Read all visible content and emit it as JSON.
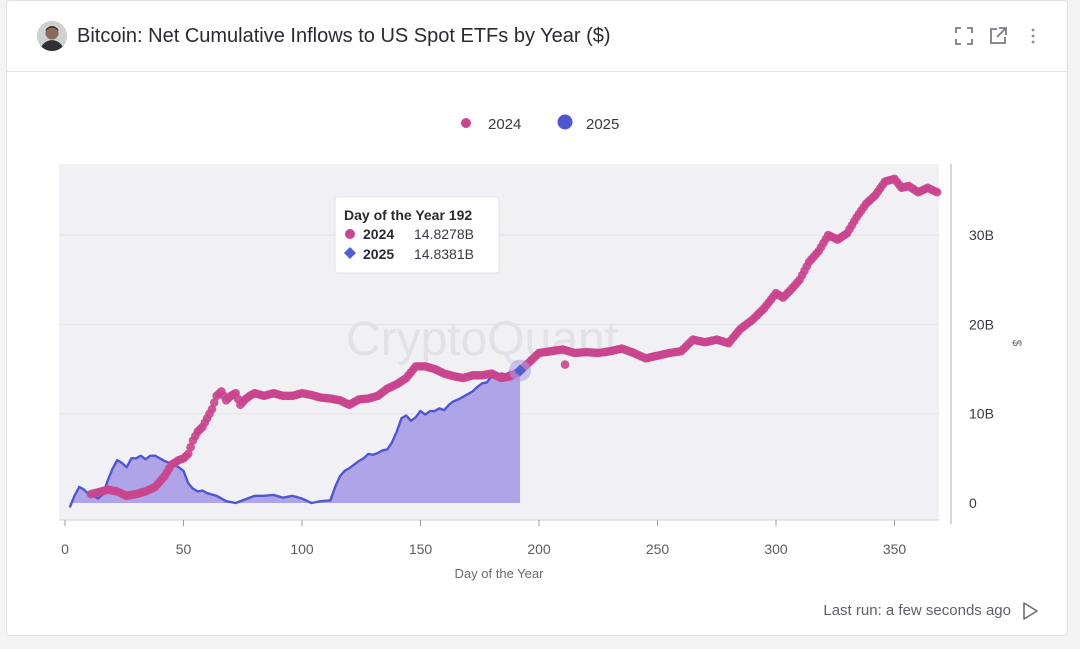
{
  "header": {
    "title": "Bitcoin: Net Cumulative Inflows to US Spot ETFs by Year ($)",
    "icons": [
      "fullscreen-icon",
      "external-link-icon",
      "more-vertical-icon"
    ]
  },
  "footer": {
    "last_run": "Last run: a few seconds ago"
  },
  "watermark": "CryptoQuant",
  "tooltip": {
    "title": "Day of the Year 192",
    "rows": [
      {
        "name": "2024",
        "value": "14.8278B",
        "color": "#c9458e",
        "marker": "circle"
      },
      {
        "name": "2025",
        "value": "14.8381B",
        "color": "#5060d0",
        "marker": "diamond"
      }
    ]
  },
  "colors": {
    "series_2024": "#c9458e",
    "series_2025_line": "#4f57cd",
    "series_2025_fill": "#a99be8",
    "plot_bg": "#f1f0f4"
  },
  "chart_data": {
    "type": "line",
    "xlabel": "Day of the Year",
    "ylabel": "$",
    "xlim": [
      0,
      370
    ],
    "ylim": [
      -2,
      38
    ],
    "x_ticks": [
      0,
      50,
      100,
      150,
      200,
      250,
      300,
      350
    ],
    "y_ticks": [
      0,
      10,
      20,
      30
    ],
    "y_tick_labels": [
      "0",
      "10B",
      "20B",
      "30B"
    ],
    "legend": [
      "2024",
      "2025"
    ],
    "legend_position": "top-center",
    "grid": true,
    "series": [
      {
        "name": "2024",
        "style": "scatter",
        "x": [
          11,
          14,
          18,
          22,
          26,
          30,
          34,
          38,
          42,
          45,
          48,
          50,
          52,
          54,
          56,
          58,
          60,
          62,
          64,
          66,
          68,
          70,
          72,
          74,
          76,
          78,
          80,
          84,
          88,
          92,
          96,
          100,
          104,
          108,
          112,
          116,
          120,
          124,
          128,
          132,
          136,
          140,
          144,
          148,
          152,
          156,
          160,
          164,
          168,
          172,
          176,
          180,
          184,
          188,
          192,
          196,
          200,
          205,
          210,
          215,
          220,
          225,
          230,
          235,
          240,
          245,
          250,
          255,
          260,
          265,
          270,
          275,
          280,
          285,
          290,
          295,
          300,
          303,
          306,
          310,
          314,
          318,
          322,
          326,
          330,
          334,
          338,
          342,
          346,
          350,
          353,
          356,
          360,
          364,
          368
        ],
        "y": [
          1.0,
          1.2,
          1.5,
          1.3,
          0.8,
          1.0,
          1.3,
          1.8,
          3.0,
          4.3,
          4.8,
          5.0,
          5.5,
          7.0,
          8.0,
          8.5,
          9.5,
          10.5,
          12.0,
          12.5,
          11.5,
          12.0,
          12.3,
          11.0,
          11.6,
          12.0,
          12.3,
          12.0,
          12.3,
          12.0,
          12.0,
          12.3,
          12.1,
          11.8,
          11.7,
          11.5,
          11.0,
          11.6,
          11.7,
          12.0,
          12.8,
          13.3,
          14.0,
          15.3,
          15.3,
          15.0,
          14.5,
          14.2,
          14.0,
          14.3,
          14.3,
          14.5,
          14.0,
          14.2,
          14.8,
          15.8,
          16.8,
          17.0,
          17.2,
          16.8,
          16.9,
          16.8,
          17.0,
          17.3,
          16.8,
          16.2,
          16.5,
          16.8,
          17.0,
          18.3,
          18.0,
          18.3,
          17.9,
          19.5,
          20.5,
          21.8,
          23.5,
          23.0,
          23.8,
          25.0,
          27.0,
          28.2,
          30.0,
          29.5,
          30.2,
          32.0,
          33.5,
          34.5,
          36.0,
          36.3,
          35.3,
          35.5,
          34.8,
          35.3,
          34.8
        ]
      },
      {
        "name": "2025",
        "style": "area",
        "x": [
          2,
          4,
          6,
          8,
          10,
          12,
          14,
          16,
          18,
          20,
          22,
          24,
          26,
          28,
          30,
          32,
          34,
          36,
          38,
          40,
          42,
          44,
          46,
          48,
          50,
          52,
          54,
          56,
          58,
          60,
          64,
          68,
          72,
          76,
          80,
          84,
          88,
          92,
          96,
          100,
          104,
          108,
          112,
          114,
          116,
          118,
          120,
          122,
          124,
          126,
          128,
          130,
          132,
          134,
          136,
          138,
          140,
          142,
          144,
          146,
          148,
          150,
          152,
          154,
          156,
          158,
          160,
          162,
          164,
          166,
          168,
          170,
          172,
          174,
          176,
          178,
          180,
          182,
          184,
          186,
          188,
          190,
          192
        ],
        "y": [
          -0.5,
          0.8,
          1.8,
          1.5,
          1.0,
          0.8,
          0.5,
          1.0,
          2.5,
          3.8,
          4.8,
          4.5,
          4.0,
          5.0,
          5.0,
          5.3,
          4.9,
          5.3,
          5.3,
          5.0,
          4.7,
          4.5,
          4.3,
          4.0,
          3.6,
          2.2,
          1.6,
          1.3,
          1.4,
          1.1,
          0.8,
          0.2,
          0.0,
          0.4,
          0.8,
          0.8,
          0.9,
          0.6,
          0.8,
          0.5,
          0.0,
          0.2,
          0.3,
          1.8,
          3.0,
          3.6,
          3.9,
          4.3,
          4.7,
          5.0,
          5.5,
          5.4,
          5.6,
          5.9,
          6.0,
          6.8,
          8.0,
          9.5,
          9.8,
          9.2,
          9.6,
          10.3,
          9.9,
          10.3,
          10.3,
          10.6,
          10.4,
          11.0,
          11.4,
          11.6,
          11.9,
          12.2,
          12.5,
          13.0,
          13.4,
          13.5,
          14.2,
          14.0,
          14.5,
          14.4,
          14.7,
          14.3,
          14.84
        ]
      }
    ],
    "outliers_2024": [
      [
        211,
        15.5
      ]
    ],
    "highlight_x": 192
  }
}
